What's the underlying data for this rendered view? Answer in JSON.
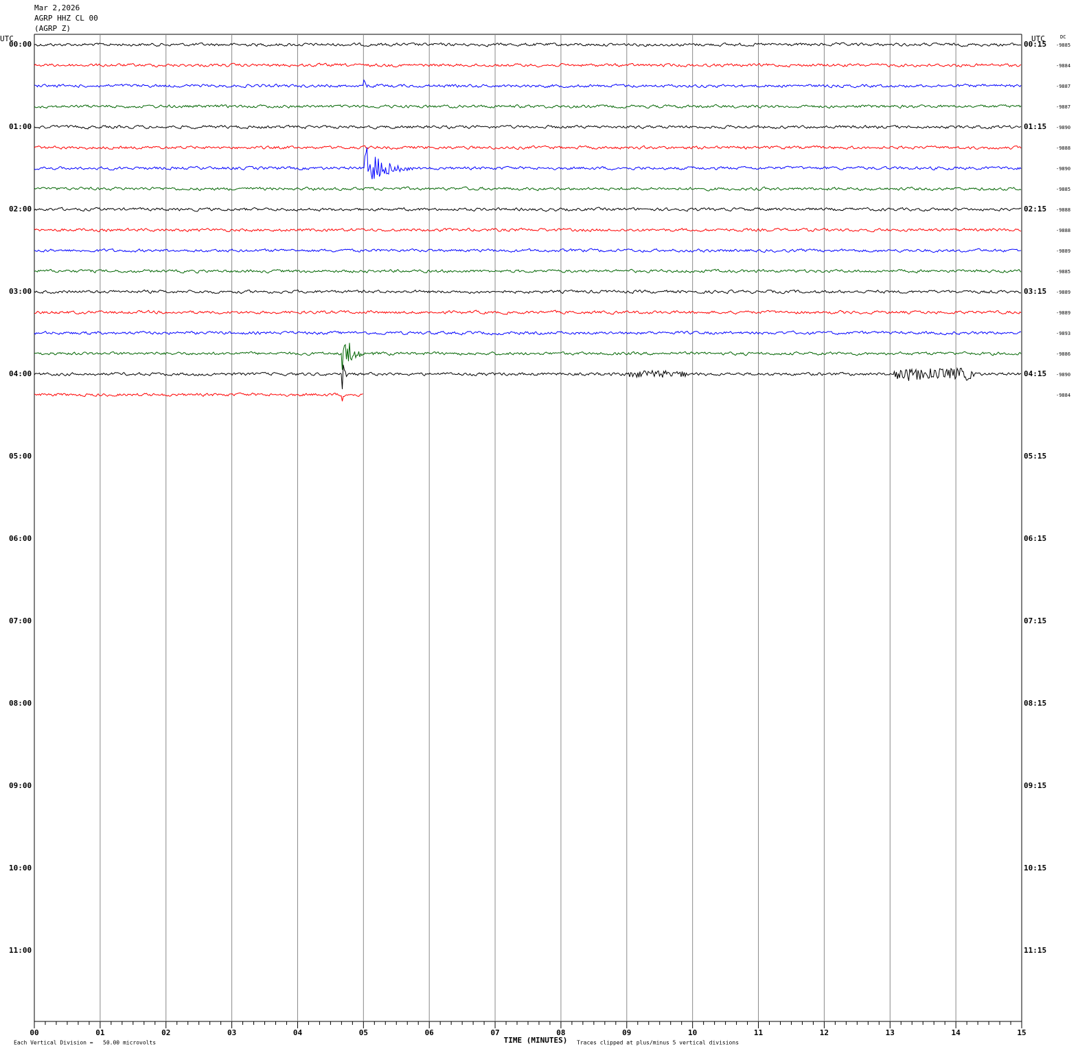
{
  "header": {
    "date": "Mar 2,2026",
    "channel": "AGRP HHZ CL 00",
    "station": "(AGRP Z)"
  },
  "left_axis": {
    "title": "UTC",
    "labels": [
      "00:00",
      "01:00",
      "02:00",
      "03:00",
      "04:00",
      "05:00",
      "06:00",
      "07:00",
      "08:00",
      "09:00",
      "10:00",
      "11:00"
    ]
  },
  "right_axis": {
    "title": "UTC",
    "labels": [
      "00:15",
      "01:15",
      "02:15",
      "03:15",
      "04:15",
      "05:15",
      "06:15",
      "07:15",
      "08:15",
      "09:15",
      "10:15",
      "11:15"
    ]
  },
  "dc": {
    "title": "DC",
    "values": [
      -9885,
      -9884,
      -9887,
      -9887,
      -9890,
      -9888,
      -9890,
      -9885,
      -9888,
      -9888,
      -9889,
      -9885,
      -9889,
      -9889,
      -9893,
      -9886,
      -9890,
      -9884
    ]
  },
  "x_axis": {
    "title": "TIME (MINUTES)",
    "ticks": [
      "00",
      "01",
      "02",
      "03",
      "04",
      "05",
      "06",
      "07",
      "08",
      "09",
      "10",
      "11",
      "12",
      "13",
      "14",
      "15"
    ]
  },
  "footer": {
    "scale": "Each Vertical Division =   50.00 microvolts",
    "clip": "Traces clipped at plus/minus 5 vertical divisions"
  },
  "trace_colors": [
    "#000000",
    "#ff0000",
    "#0000ff",
    "#006400"
  ]
}
